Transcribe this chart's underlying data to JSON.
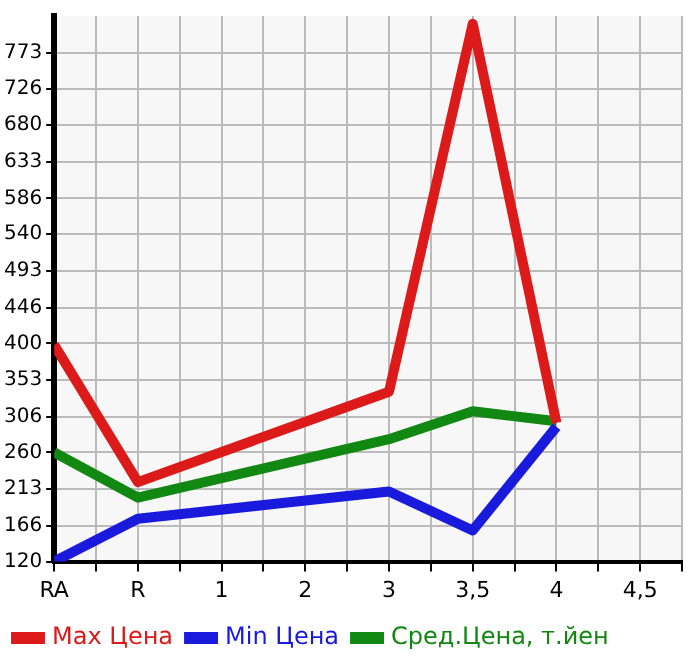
{
  "chart_data": {
    "type": "line",
    "categories": [
      "RA",
      "R",
      "1",
      "2",
      "3",
      "3,5",
      "4",
      "4,5"
    ],
    "series": [
      {
        "name": "Max Цена",
        "color": "#dd1a1a",
        "values": [
          398,
          222,
          null,
          null,
          338,
          810,
          298,
          null
        ]
      },
      {
        "name": "Min Цена",
        "color": "#1a1add",
        "values": [
          120,
          175,
          null,
          null,
          210,
          160,
          293,
          null
        ]
      },
      {
        "name": "Сред.Цена, т.йен",
        "color": "#118811",
        "values": [
          260,
          202,
          null,
          null,
          277,
          313,
          300,
          null
        ]
      }
    ],
    "ylim": [
      120,
      820
    ],
    "yticks": [
      120,
      166,
      213,
      260,
      306,
      353,
      400,
      446,
      493,
      540,
      586,
      633,
      680,
      726,
      773
    ],
    "grid": true,
    "legend": "bottom",
    "marker": "none",
    "line_style": "solid"
  }
}
